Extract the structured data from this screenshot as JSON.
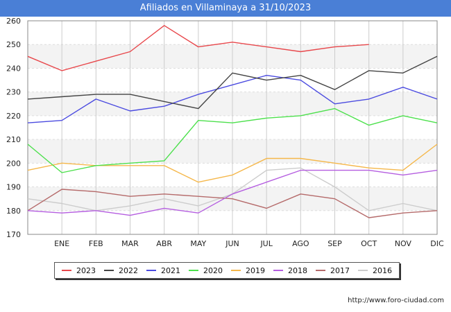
{
  "header": {
    "title": "Afiliados en Villaminaya a 31/10/2023"
  },
  "footer": {
    "source": "http://www.foro-ciudad.com"
  },
  "chart_data": {
    "type": "line",
    "title": "Afiliados en Villaminaya a 31/10/2023",
    "x": [
      "",
      "ENE",
      "FEB",
      "MAR",
      "ABR",
      "MAY",
      "JUN",
      "JUL",
      "AGO",
      "SEP",
      "OCT",
      "NOV",
      "DIC"
    ],
    "ylim": [
      170,
      260
    ],
    "yticks": [
      170,
      180,
      190,
      200,
      210,
      220,
      230,
      240,
      250,
      260
    ],
    "grid": true,
    "legend_position": "bottom",
    "series": [
      {
        "name": "2023",
        "color": "#e8474b",
        "values": [
          245,
          239,
          243,
          247,
          258,
          249,
          251,
          249,
          247,
          249,
          250,
          null,
          null
        ]
      },
      {
        "name": "2022",
        "color": "#444444",
        "values": [
          227,
          228,
          229,
          229,
          226,
          223,
          238,
          235,
          237,
          231,
          239,
          238,
          245
        ]
      },
      {
        "name": "2021",
        "color": "#4a4ae0",
        "values": [
          217,
          218,
          227,
          222,
          224,
          229,
          233,
          237,
          235,
          225,
          227,
          232,
          227
        ]
      },
      {
        "name": "2020",
        "color": "#4ce04c",
        "values": [
          208,
          196,
          199,
          200,
          201,
          218,
          217,
          219,
          220,
          223,
          216,
          220,
          217
        ]
      },
      {
        "name": "2019",
        "color": "#f5b74a",
        "values": [
          197,
          200,
          199,
          199,
          199,
          192,
          195,
          202,
          202,
          200,
          198,
          197,
          208
        ]
      },
      {
        "name": "2018",
        "color": "#b55ee0",
        "values": [
          180,
          179,
          180,
          178,
          181,
          179,
          187,
          192,
          197,
          197,
          197,
          195,
          197
        ]
      },
      {
        "name": "2017",
        "color": "#b56a6a",
        "values": [
          180,
          189,
          188,
          186,
          187,
          186,
          185,
          181,
          187,
          185,
          177,
          179,
          180
        ]
      },
      {
        "name": "2016",
        "color": "#cccccc",
        "values": [
          185,
          183,
          180,
          182,
          185,
          182,
          187,
          197,
          198,
          190,
          180,
          183,
          180
        ]
      }
    ]
  }
}
